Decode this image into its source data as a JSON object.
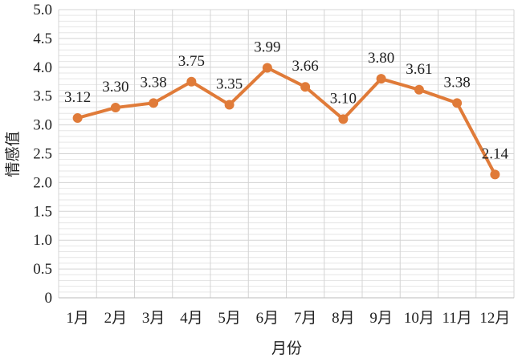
{
  "chart_data": {
    "type": "line",
    "title": "",
    "xlabel": "月份",
    "ylabel": "情感值",
    "categories": [
      "1月",
      "2月",
      "3月",
      "4月",
      "5月",
      "6月",
      "7月",
      "8月",
      "9月",
      "10月",
      "11月",
      "12月"
    ],
    "values": [
      3.12,
      3.3,
      3.38,
      3.75,
      3.35,
      3.99,
      3.66,
      3.1,
      3.8,
      3.61,
      3.38,
      2.14
    ],
    "data_labels": [
      "3.12",
      "3.30",
      "3.38",
      "3.75",
      "3.35",
      "3.99",
      "3.66",
      "3.10",
      "3.80",
      "3.61",
      "3.38",
      "2.14"
    ],
    "ylim": [
      0,
      5
    ],
    "yticks": [
      "0",
      "0.5",
      "1.0",
      "1.5",
      "2.0",
      "2.5",
      "3.0",
      "3.5",
      "4.0",
      "4.5",
      "5.0"
    ],
    "grid": true,
    "legend": "none",
    "color": "#E07B39"
  }
}
